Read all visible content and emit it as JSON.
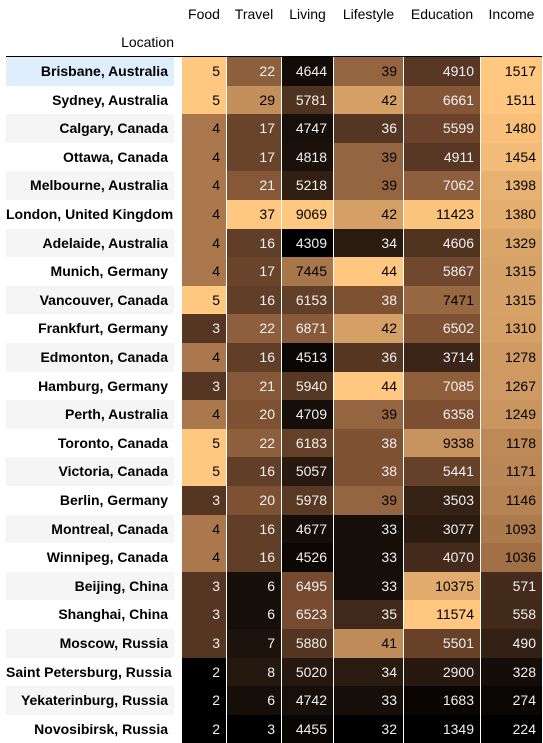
{
  "chart_data": {
    "type": "table",
    "index_name": "Location",
    "columns": [
      "Food",
      "Travel",
      "Living",
      "Lifestyle",
      "Education",
      "Income"
    ],
    "rows": [
      {
        "location": "Brisbane, Australia",
        "values": [
          5,
          22,
          4644,
          39,
          4910,
          1517
        ]
      },
      {
        "location": "Sydney, Australia",
        "values": [
          5,
          29,
          5781,
          42,
          6661,
          1511
        ]
      },
      {
        "location": "Calgary, Canada",
        "values": [
          4,
          17,
          4747,
          36,
          5599,
          1480
        ]
      },
      {
        "location": "Ottawa, Canada",
        "values": [
          4,
          17,
          4818,
          39,
          4911,
          1454
        ]
      },
      {
        "location": "Melbourne, Australia",
        "values": [
          4,
          21,
          5218,
          39,
          7062,
          1398
        ]
      },
      {
        "location": "London, United Kingdom",
        "values": [
          4,
          37,
          9069,
          42,
          11423,
          1380
        ]
      },
      {
        "location": "Adelaide, Australia",
        "values": [
          4,
          16,
          4309,
          34,
          4606,
          1329
        ]
      },
      {
        "location": "Munich, Germany",
        "values": [
          4,
          17,
          7445,
          44,
          5867,
          1315
        ]
      },
      {
        "location": "Vancouver, Canada",
        "values": [
          5,
          16,
          6153,
          38,
          7471,
          1315
        ]
      },
      {
        "location": "Frankfurt, Germany",
        "values": [
          3,
          22,
          6871,
          42,
          6502,
          1310
        ]
      },
      {
        "location": "Edmonton, Canada",
        "values": [
          4,
          16,
          4513,
          36,
          3714,
          1278
        ]
      },
      {
        "location": "Hamburg, Germany",
        "values": [
          3,
          21,
          5940,
          44,
          7085,
          1267
        ]
      },
      {
        "location": "Perth, Australia",
        "values": [
          4,
          20,
          4709,
          39,
          6358,
          1249
        ]
      },
      {
        "location": "Toronto, Canada",
        "values": [
          5,
          22,
          6183,
          38,
          9338,
          1178
        ]
      },
      {
        "location": "Victoria, Canada",
        "values": [
          5,
          16,
          5057,
          38,
          5441,
          1171
        ]
      },
      {
        "location": "Berlin, Germany",
        "values": [
          3,
          20,
          5978,
          39,
          3503,
          1146
        ]
      },
      {
        "location": "Montreal, Canada",
        "values": [
          4,
          16,
          4677,
          33,
          3077,
          1093
        ]
      },
      {
        "location": "Winnipeg, Canada",
        "values": [
          4,
          16,
          4526,
          33,
          4070,
          1036
        ]
      },
      {
        "location": "Beijing, China",
        "values": [
          3,
          6,
          6495,
          33,
          10375,
          571
        ]
      },
      {
        "location": "Shanghai, China",
        "values": [
          3,
          6,
          6523,
          35,
          11574,
          558
        ]
      },
      {
        "location": "Moscow, Russia",
        "values": [
          3,
          7,
          5880,
          41,
          5501,
          490
        ]
      },
      {
        "location": "Saint Petersburg, Russia",
        "values": [
          2,
          8,
          5020,
          34,
          2900,
          328
        ]
      },
      {
        "location": "Yekaterinburg, Russia",
        "values": [
          2,
          6,
          4742,
          33,
          1683,
          274
        ]
      },
      {
        "location": "Novosibirsk, Russia",
        "values": [
          2,
          3,
          4455,
          32,
          1349,
          224
        ]
      }
    ],
    "colormap": "copper",
    "colormap_stops": [
      "#000000",
      "#7f5133",
      "#ffc77f"
    ],
    "highlighted_row": 0
  }
}
